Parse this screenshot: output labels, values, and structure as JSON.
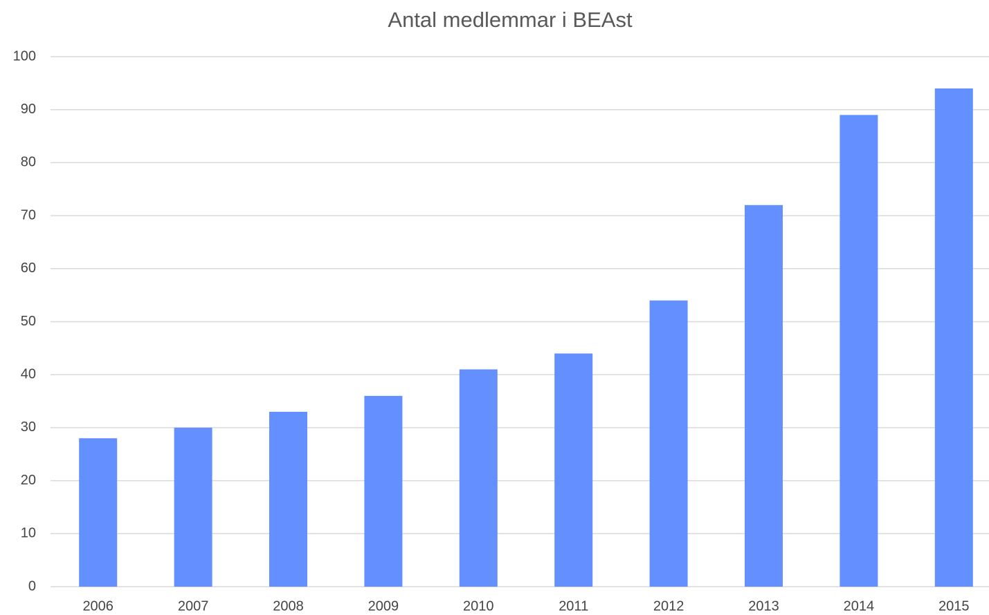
{
  "chart_data": {
    "type": "bar",
    "title": "Antal medlemmar i BEAst",
    "categories": [
      "2006",
      "2007",
      "2008",
      "2009",
      "2010",
      "2011",
      "2012",
      "2013",
      "2014",
      "2015"
    ],
    "values": [
      28,
      30,
      33,
      36,
      41,
      44,
      54,
      72,
      89,
      94
    ],
    "color": "#6390fe",
    "ylim": [
      0,
      100
    ],
    "yticks": [
      0,
      10,
      20,
      30,
      40,
      50,
      60,
      70,
      80,
      90,
      100
    ],
    "grid": true
  }
}
